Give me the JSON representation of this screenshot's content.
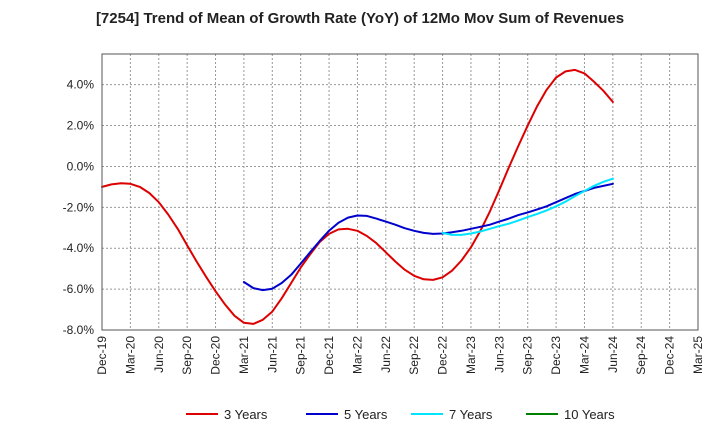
{
  "chart_data": {
    "type": "line",
    "title": "[7254]  Trend of Mean of Growth Rate (YoY) of 12Mo Mov Sum of Revenues",
    "xlabel": "",
    "ylabel": "",
    "ylim": [
      -8,
      5.5
    ],
    "y_ticks": [
      -8,
      -6,
      -4,
      -2,
      0,
      2,
      4
    ],
    "y_tick_labels": [
      "-8.0%",
      "-6.0%",
      "-4.0%",
      "-2.0%",
      "0.0%",
      "2.0%",
      "4.0%"
    ],
    "x_tick_labels": [
      "Dec-19",
      "Mar-20",
      "Jun-20",
      "Sep-20",
      "Dec-20",
      "Mar-21",
      "Jun-21",
      "Sep-21",
      "Dec-21",
      "Mar-22",
      "Jun-22",
      "Sep-22",
      "Dec-22",
      "Mar-23",
      "Jun-23",
      "Sep-23",
      "Dec-23",
      "Mar-24",
      "Jun-24",
      "Sep-24",
      "Dec-24",
      "Mar-25"
    ],
    "legend_position": "bottom",
    "series": [
      {
        "name": "3 Years",
        "color": "#dd0000",
        "start_index": 0,
        "values": [
          -1.0,
          -0.88,
          -0.82,
          -0.85,
          -1.0,
          -1.3,
          -1.75,
          -2.35,
          -3.05,
          -3.85,
          -4.65,
          -5.4,
          -6.1,
          -6.75,
          -7.3,
          -7.65,
          -7.7,
          -7.5,
          -7.1,
          -6.45,
          -5.7,
          -4.95,
          -4.3,
          -3.7,
          -3.3,
          -3.08,
          -3.05,
          -3.15,
          -3.4,
          -3.75,
          -4.2,
          -4.65,
          -5.05,
          -5.35,
          -5.52,
          -5.55,
          -5.42,
          -5.1,
          -4.6,
          -3.95,
          -3.15,
          -2.2,
          -1.15,
          -0.05,
          1.0,
          2.0,
          2.95,
          3.75,
          4.35,
          4.65,
          4.72,
          4.55,
          4.15,
          3.7,
          3.15
        ]
      },
      {
        "name": "5 Years",
        "color": "#0000cc",
        "start_index": 15,
        "values": [
          -5.65,
          -5.95,
          -6.05,
          -5.98,
          -5.7,
          -5.3,
          -4.75,
          -4.2,
          -3.65,
          -3.15,
          -2.75,
          -2.5,
          -2.4,
          -2.42,
          -2.55,
          -2.7,
          -2.85,
          -3.02,
          -3.15,
          -3.25,
          -3.3,
          -3.28,
          -3.22,
          -3.15,
          -3.05,
          -2.95,
          -2.85,
          -2.7,
          -2.55,
          -2.38,
          -2.25,
          -2.1,
          -1.95,
          -1.75,
          -1.55,
          -1.35,
          -1.2,
          -1.05,
          -0.95,
          -0.85
        ]
      },
      {
        "name": "7 Years",
        "color": "#00e5ff",
        "start_index": 36,
        "values": [
          -3.25,
          -3.35,
          -3.35,
          -3.28,
          -3.18,
          -3.05,
          -2.92,
          -2.8,
          -2.65,
          -2.48,
          -2.32,
          -2.15,
          -1.95,
          -1.72,
          -1.45,
          -1.2,
          -0.95,
          -0.75,
          -0.6
        ]
      },
      {
        "name": "10 Years",
        "color": "#008000",
        "start_index": 0,
        "values": []
      }
    ]
  }
}
